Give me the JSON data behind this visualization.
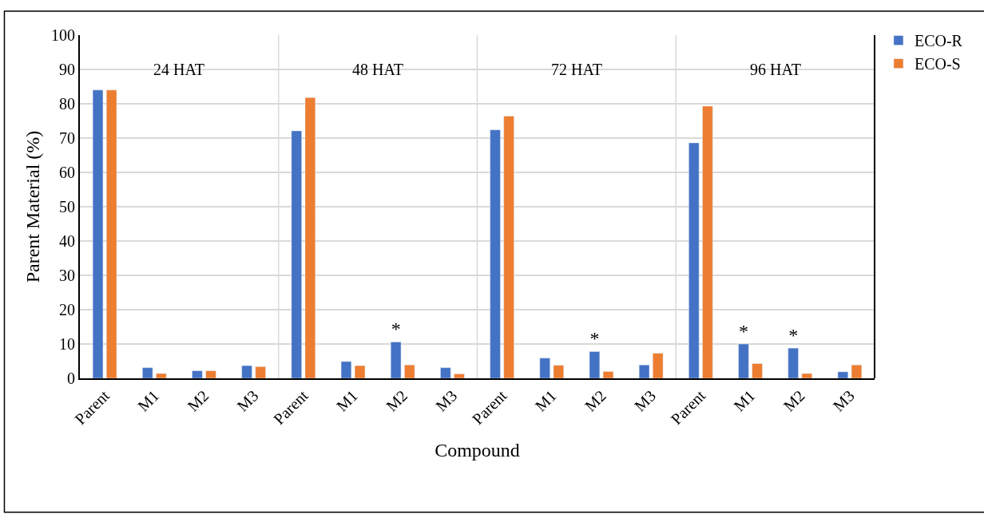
{
  "chart_data": {
    "type": "bar",
    "xlabel": "Compound",
    "ylabel": "Parent Material (%)",
    "categories": [
      "Parent",
      "M1",
      "M2",
      "M3",
      "Parent",
      "M1",
      "M2",
      "M3",
      "Parent",
      "M1",
      "M2",
      "M3",
      "Parent",
      "M1",
      "M2",
      "M3"
    ],
    "series": [
      {
        "name": "ECO-R",
        "color": "#4472c4",
        "values": [
          84,
          3.1,
          2.2,
          3.7,
          72.1,
          4.9,
          10.6,
          3.1,
          72.4,
          5.9,
          7.8,
          3.9,
          68.6,
          10.0,
          8.8,
          1.9
        ],
        "value_labels": [
          null,
          null,
          null,
          null,
          null,
          null,
          "*",
          null,
          null,
          null,
          "*",
          null,
          null,
          "*",
          "*",
          null
        ]
      },
      {
        "name": "ECO-S",
        "color": "#ed7d31",
        "values": [
          84,
          1.4,
          2.2,
          3.4,
          81.8,
          3.7,
          3.9,
          1.3,
          76.4,
          3.8,
          2.0,
          7.3,
          79.3,
          4.3,
          1.4,
          3.9
        ]
      }
    ],
    "annotations": [
      "24 HAT",
      "48 HAT",
      "72 HAT",
      "96 HAT"
    ],
    "ylim": [
      0,
      100
    ],
    "yticks": [
      0,
      10,
      20,
      30,
      40,
      50,
      60,
      70,
      80,
      90,
      100
    ],
    "grid": "y",
    "legend": "top right"
  }
}
